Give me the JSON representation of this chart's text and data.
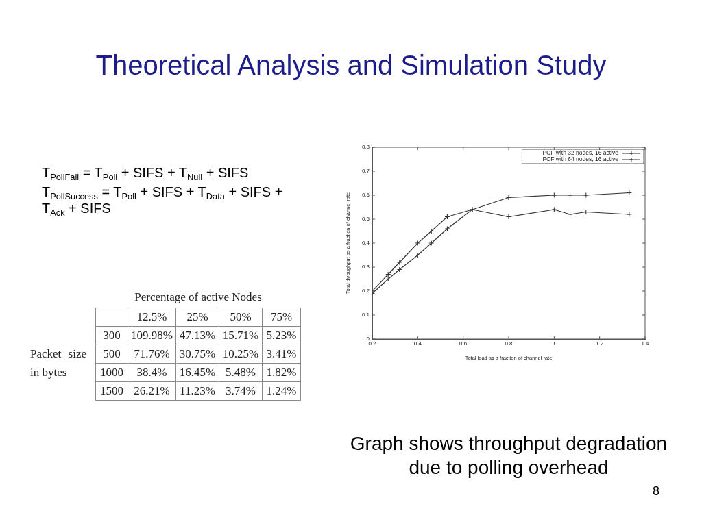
{
  "chart_data": [
    {
      "type": "other",
      "title": "Theoretical Analysis and Simulation Study",
      "annotations": [
        "T$_{PollFail}$ = T$_{Poll}$ + SIFS + T$_{Null}$ + SIFS",
        "T$_{PollSuccess}$ = T$_{Poll}$ + SIFS + T$_{Data}$ + SIFS + T$_{Ack}$ + SIFS",
        "8"
      ]
    },
    {
      "type": "other",
      "title": "Percentage of active Nodes",
      "ylabel": "Packet size in bytes",
      "categories": [
        "12.5%",
        "25%",
        "50%",
        "75%"
      ],
      "y_categories": [
        "300",
        "500",
        "1000",
        "1500"
      ],
      "cell_labels": [
        [
          "109.98%",
          "47.13%",
          "15.71%",
          "5.23%"
        ],
        [
          "71.76%",
          "30.75%",
          "10.25%",
          "3.41%"
        ],
        [
          "38.4%",
          "16.45%",
          "5.48%",
          "1.82%"
        ],
        [
          "26.21%",
          "11.23%",
          "3.74%",
          "1.24%"
        ]
      ]
    },
    {
      "type": "line",
      "xlabel": "Total load as a fraction of channel rate",
      "ylabel": "Total throughput as a fraction of channel rate",
      "x": [
        0.2,
        0.27,
        0.32,
        0.4,
        0.46,
        0.53,
        0.64,
        0.8,
        1.0,
        1.07,
        1.14,
        1.33
      ],
      "series": [
        {
          "name": "PCF with 32 nodes, 16 active",
          "color": "#333333",
          "marker": "cross",
          "values": [
            0.19,
            0.25,
            0.29,
            0.35,
            0.4,
            0.46,
            0.54,
            0.59,
            0.6,
            0.6,
            0.6,
            0.61
          ]
        },
        {
          "name": "PCF with 64 nodes, 16 active",
          "color": "#333333",
          "marker": "cross",
          "values": [
            0.2,
            0.27,
            0.32,
            0.4,
            0.45,
            0.51,
            0.54,
            0.51,
            0.54,
            0.52,
            0.53,
            0.52
          ]
        }
      ],
      "xlim": [
        0.2,
        1.4
      ],
      "xticks": [
        0.2,
        0.4,
        0.6,
        0.8,
        1,
        1.2,
        1.4
      ],
      "ylim": [
        0,
        0.8
      ],
      "yticks": [
        0,
        0.1,
        0.2,
        0.3,
        0.4,
        0.5,
        0.6,
        0.7,
        0.8
      ],
      "legend": "top right",
      "annotations": [
        "Graph shows throughput degradation due to polling overhead"
      ]
    }
  ]
}
